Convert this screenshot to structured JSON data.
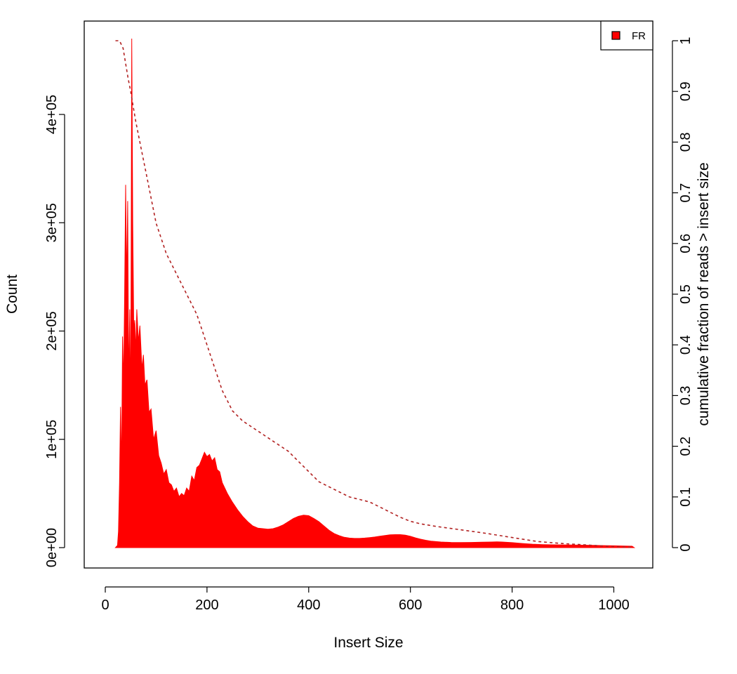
{
  "chart_data": {
    "type": "area",
    "x_axis": {
      "label": "Insert Size",
      "range": [
        20,
        1040
      ],
      "ticks": [
        0,
        200,
        400,
        600,
        800,
        1000
      ],
      "tick_labels": [
        "0",
        "200",
        "400",
        "600",
        "800",
        "1000"
      ]
    },
    "y_axis_left": {
      "label": "Count",
      "range": [
        0,
        470000
      ],
      "ticks": [
        0,
        100000,
        200000,
        300000,
        400000
      ],
      "tick_labels": [
        "0e+00",
        "1e+05",
        "2e+05",
        "3e+05",
        "4e+05"
      ]
    },
    "y_axis_right": {
      "label": "cumulative fraction of reads > insert size",
      "range": [
        0,
        1
      ],
      "ticks": [
        0,
        0.1,
        0.2,
        0.3,
        0.4,
        0.5,
        0.6,
        0.7,
        0.8,
        0.9,
        1
      ],
      "tick_labels": [
        "0",
        "0.1",
        "0.2",
        "0.3",
        "0.4",
        "0.5",
        "0.6",
        "0.7",
        "0.8",
        "0.9",
        "1"
      ]
    },
    "legend": {
      "position": "top-right",
      "entries": [
        {
          "label": "FR",
          "color": "#ff0000"
        }
      ]
    },
    "grid": false,
    "series": [
      {
        "name": "FR",
        "kind": "histogram-area",
        "axis": "left",
        "color": "#ff0000",
        "points": [
          [
            20,
            0
          ],
          [
            24,
            2000
          ],
          [
            26,
            15000
          ],
          [
            28,
            60000
          ],
          [
            30,
            130000
          ],
          [
            32,
            70000
          ],
          [
            34,
            195000
          ],
          [
            36,
            150000
          ],
          [
            38,
            230000
          ],
          [
            40,
            335000
          ],
          [
            42,
            240000
          ],
          [
            44,
            320000
          ],
          [
            46,
            150000
          ],
          [
            48,
            220000
          ],
          [
            50,
            120000
          ],
          [
            52,
            470000
          ],
          [
            54,
            300000
          ],
          [
            56,
            200000
          ],
          [
            58,
            210000
          ],
          [
            60,
            180000
          ],
          [
            62,
            220000
          ],
          [
            65,
            190000
          ],
          [
            68,
            205000
          ],
          [
            72,
            165000
          ],
          [
            75,
            178000
          ],
          [
            78,
            150000
          ],
          [
            82,
            155000
          ],
          [
            86,
            125000
          ],
          [
            90,
            128000
          ],
          [
            95,
            100000
          ],
          [
            100,
            108000
          ],
          [
            105,
            85000
          ],
          [
            110,
            78000
          ],
          [
            115,
            68000
          ],
          [
            120,
            72000
          ],
          [
            125,
            60000
          ],
          [
            130,
            58000
          ],
          [
            135,
            52000
          ],
          [
            140,
            55000
          ],
          [
            145,
            47000
          ],
          [
            150,
            50000
          ],
          [
            155,
            48000
          ],
          [
            160,
            55000
          ],
          [
            165,
            52000
          ],
          [
            170,
            66000
          ],
          [
            175,
            62000
          ],
          [
            180,
            74000
          ],
          [
            185,
            76000
          ],
          [
            190,
            82000
          ],
          [
            195,
            88000
          ],
          [
            200,
            84000
          ],
          [
            205,
            86000
          ],
          [
            210,
            80000
          ],
          [
            215,
            83000
          ],
          [
            220,
            72000
          ],
          [
            225,
            70000
          ],
          [
            230,
            60000
          ],
          [
            240,
            50000
          ],
          [
            250,
            42000
          ],
          [
            260,
            35000
          ],
          [
            270,
            29000
          ],
          [
            280,
            24000
          ],
          [
            290,
            20000
          ],
          [
            300,
            18000
          ],
          [
            310,
            17500
          ],
          [
            320,
            17000
          ],
          [
            330,
            17500
          ],
          [
            340,
            19000
          ],
          [
            350,
            21000
          ],
          [
            360,
            24000
          ],
          [
            370,
            27000
          ],
          [
            380,
            29000
          ],
          [
            390,
            30000
          ],
          [
            400,
            29500
          ],
          [
            410,
            27000
          ],
          [
            420,
            24000
          ],
          [
            430,
            20000
          ],
          [
            440,
            16000
          ],
          [
            450,
            13000
          ],
          [
            460,
            11000
          ],
          [
            470,
            9500
          ],
          [
            480,
            8800
          ],
          [
            490,
            8500
          ],
          [
            500,
            8500
          ],
          [
            510,
            8800
          ],
          [
            520,
            9300
          ],
          [
            530,
            9800
          ],
          [
            540,
            10500
          ],
          [
            550,
            11200
          ],
          [
            560,
            11800
          ],
          [
            570,
            12000
          ],
          [
            580,
            12000
          ],
          [
            590,
            11500
          ],
          [
            600,
            10500
          ],
          [
            610,
            9000
          ],
          [
            620,
            7800
          ],
          [
            630,
            6800
          ],
          [
            640,
            6000
          ],
          [
            660,
            5200
          ],
          [
            680,
            4800
          ],
          [
            700,
            4700
          ],
          [
            720,
            4800
          ],
          [
            740,
            5000
          ],
          [
            760,
            5200
          ],
          [
            770,
            5300
          ],
          [
            780,
            5200
          ],
          [
            800,
            4600
          ],
          [
            820,
            3800
          ],
          [
            840,
            3200
          ],
          [
            860,
            2800
          ],
          [
            880,
            2600
          ],
          [
            900,
            2500
          ],
          [
            920,
            2400
          ],
          [
            940,
            2300
          ],
          [
            960,
            2100
          ],
          [
            980,
            1900
          ],
          [
            1000,
            1700
          ],
          [
            1020,
            1500
          ],
          [
            1036,
            1300
          ],
          [
            1040,
            0
          ]
        ]
      },
      {
        "name": "",
        "kind": "dashed-line",
        "axis": "right",
        "color": "#b22222",
        "points": [
          [
            20,
            1.0
          ],
          [
            28,
            1.0
          ],
          [
            35,
            0.985
          ],
          [
            40,
            0.955
          ],
          [
            45,
            0.925
          ],
          [
            50,
            0.9
          ],
          [
            55,
            0.87
          ],
          [
            60,
            0.84
          ],
          [
            70,
            0.79
          ],
          [
            80,
            0.74
          ],
          [
            90,
            0.69
          ],
          [
            100,
            0.64
          ],
          [
            110,
            0.61
          ],
          [
            120,
            0.58
          ],
          [
            130,
            0.56
          ],
          [
            140,
            0.54
          ],
          [
            150,
            0.52
          ],
          [
            160,
            0.5
          ],
          [
            170,
            0.48
          ],
          [
            180,
            0.46
          ],
          [
            190,
            0.43
          ],
          [
            200,
            0.4
          ],
          [
            210,
            0.37
          ],
          [
            220,
            0.34
          ],
          [
            230,
            0.31
          ],
          [
            240,
            0.29
          ],
          [
            250,
            0.27
          ],
          [
            270,
            0.25
          ],
          [
            300,
            0.23
          ],
          [
            330,
            0.21
          ],
          [
            360,
            0.19
          ],
          [
            380,
            0.17
          ],
          [
            400,
            0.15
          ],
          [
            420,
            0.13
          ],
          [
            440,
            0.12
          ],
          [
            460,
            0.11
          ],
          [
            480,
            0.1
          ],
          [
            500,
            0.095
          ],
          [
            520,
            0.09
          ],
          [
            540,
            0.08
          ],
          [
            560,
            0.07
          ],
          [
            580,
            0.06
          ],
          [
            600,
            0.052
          ],
          [
            620,
            0.047
          ],
          [
            650,
            0.042
          ],
          [
            700,
            0.035
          ],
          [
            750,
            0.028
          ],
          [
            800,
            0.02
          ],
          [
            850,
            0.012
          ],
          [
            900,
            0.008
          ],
          [
            950,
            0.005
          ],
          [
            1000,
            0.002
          ],
          [
            1036,
            0.001
          ]
        ]
      }
    ]
  }
}
